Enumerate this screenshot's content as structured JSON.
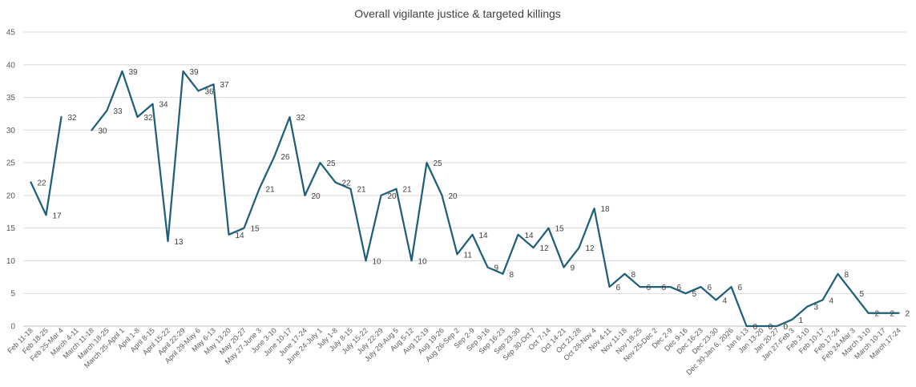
{
  "chart_data": {
    "type": "line",
    "title": "Overall vigilante justice & targeted killings",
    "xlabel": "",
    "ylabel": "",
    "ylim": [
      0,
      45
    ],
    "yticks": [
      0,
      5,
      10,
      15,
      20,
      25,
      30,
      35,
      40,
      45
    ],
    "grid": true,
    "legend": "none",
    "line_color": "#1f5f7a",
    "categories": [
      "Feb 11-18",
      "Feb 18-25",
      "Feb 25-Mar 4",
      "March 4-11",
      "March 11-18",
      "March 18-25",
      "March 25-April 1",
      "April 1-8",
      "April 8-15",
      "April 15-22",
      "April 22-29",
      "April 29-May 6",
      "May 6-13",
      "May 13-20",
      "May 20-27",
      "May 27-June 3",
      "June 3-10",
      "June 10-17",
      "June 17-24",
      "June 24-July 1",
      "July 1-8",
      "July 8-15",
      "July 15-22",
      "July 22-29",
      "July 29-Aug 5",
      "Aug 5-12",
      "Aug 12-19",
      "Aug 19-26",
      "Aug 26-Sep 2",
      "Sep 2-9",
      "Sep 9-16",
      "Sep 16-23",
      "Sep 23-30",
      "Sep 30-Oct 7",
      "Oct 7-14",
      "Oct 14-21",
      "Oct 21-28",
      "Oct 28-Nov 4",
      "Nov 4-11",
      "Nov 11-18",
      "Nov 18-25",
      "Nov 25-Dec 2",
      "Dec 2-9",
      "Dec 9-16",
      "Dec 16-23",
      "Dec 23-30",
      "Dec 30-Jan 6, 2026",
      "Jan 6-13",
      "Jan 13-20",
      "Jan 20-27",
      "Jan 27-Feb 3",
      "Feb 3-10",
      "Feb 10-17",
      "Feb 17-24",
      "Feb 24-Mar 3",
      "March 3-10",
      "March 10-17",
      "March 17-24"
    ],
    "values": [
      22,
      17,
      32,
      null,
      30,
      33,
      39,
      32,
      34,
      13,
      39,
      36,
      37,
      14,
      15,
      21,
      26,
      32,
      20,
      25,
      22,
      21,
      10,
      20,
      21,
      10,
      25,
      20,
      11,
      14,
      9,
      8,
      14,
      12,
      15,
      9,
      12,
      18,
      6,
      8,
      6,
      6,
      6,
      5,
      6,
      4,
      6,
      0,
      0,
      0,
      1,
      3,
      4,
      8,
      5,
      2,
      2,
      2
    ]
  }
}
